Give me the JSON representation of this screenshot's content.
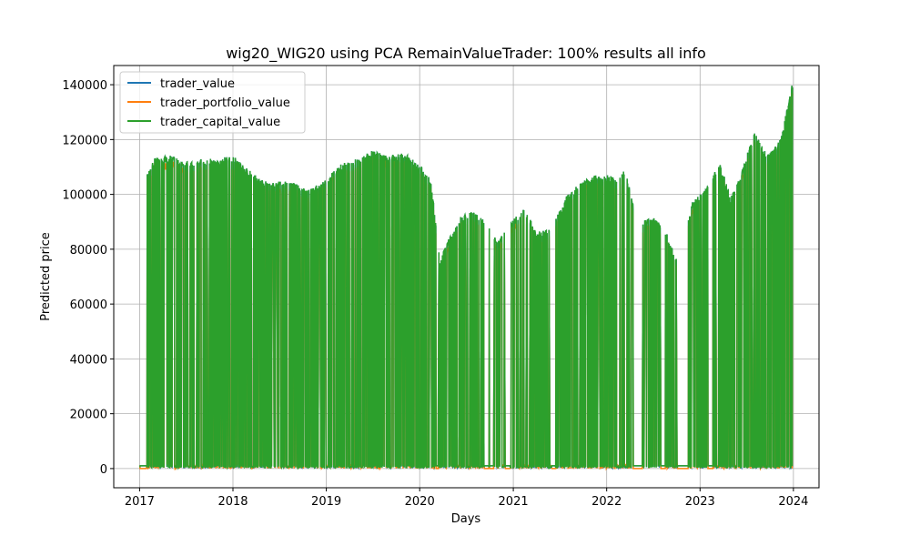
{
  "chart_data": {
    "type": "line",
    "title": "wig20_WIG20 using PCA RemainValueTrader: 100% results all info",
    "xlabel": "Days",
    "ylabel": "Predicted price",
    "xlim": [
      "2016-09-22",
      "2024-04-10"
    ],
    "ylim": [
      -7000,
      147000
    ],
    "x_ticks": [
      "2017",
      "2018",
      "2019",
      "2020",
      "2021",
      "2022",
      "2023",
      "2024"
    ],
    "y_ticks": [
      0,
      20000,
      40000,
      60000,
      80000,
      100000,
      120000,
      140000
    ],
    "y_tick_labels": [
      "0",
      "20000",
      "40000",
      "60000",
      "80000",
      "100000",
      "120000",
      "140000"
    ],
    "grid": true,
    "legend_position": "top-left",
    "series": [
      {
        "name": "trader_value",
        "color": "#1f77b4"
      },
      {
        "name": "trader_portfolio_value",
        "color": "#ff7f0e"
      },
      {
        "name": "trader_capital_value",
        "color": "#2ca02c"
      }
    ],
    "trader_value_envelope": {
      "x": [
        "2017-01-02",
        "2017-01-20",
        "2017-03-01",
        "2017-05-01",
        "2017-07-01",
        "2017-09-01",
        "2017-11-01",
        "2018-01-02",
        "2018-03-01",
        "2018-05-01",
        "2018-07-01",
        "2018-09-01",
        "2018-11-01",
        "2019-01-02",
        "2019-03-01",
        "2019-05-01",
        "2019-07-01",
        "2019-09-01",
        "2019-11-01",
        "2020-01-02",
        "2020-02-15",
        "2020-03-20",
        "2020-04-20",
        "2020-06-10",
        "2020-08-01",
        "2020-10-01",
        "2020-11-01",
        "2021-01-04",
        "2021-02-15",
        "2021-04-01",
        "2021-06-01",
        "2021-08-01",
        "2021-10-01",
        "2021-11-15",
        "2022-01-03",
        "2022-02-15",
        "2022-03-15",
        "2022-05-01",
        "2022-07-01",
        "2022-08-15",
        "2022-10-10",
        "2022-12-01",
        "2023-01-10",
        "2023-03-20",
        "2023-05-01",
        "2023-06-15",
        "2023-08-01",
        "2023-09-15",
        "2023-10-15",
        "2023-11-15",
        "2023-12-29"
      ],
      "y": [
        100500,
        104000,
        112000,
        113000,
        111000,
        112000,
        112000,
        113000,
        108000,
        104000,
        104000,
        103000,
        101000,
        105000,
        110000,
        112000,
        115000,
        113000,
        114000,
        110000,
        104000,
        75000,
        82000,
        91000,
        93000,
        88000,
        82000,
        90000,
        94000,
        85000,
        87000,
        99000,
        104000,
        106000,
        106000,
        105000,
        108000,
        88000,
        91000,
        87000,
        74000,
        96000,
        100000,
        110000,
        98000,
        108000,
        122000,
        114000,
        115000,
        120000,
        140000
      ]
    }
  }
}
